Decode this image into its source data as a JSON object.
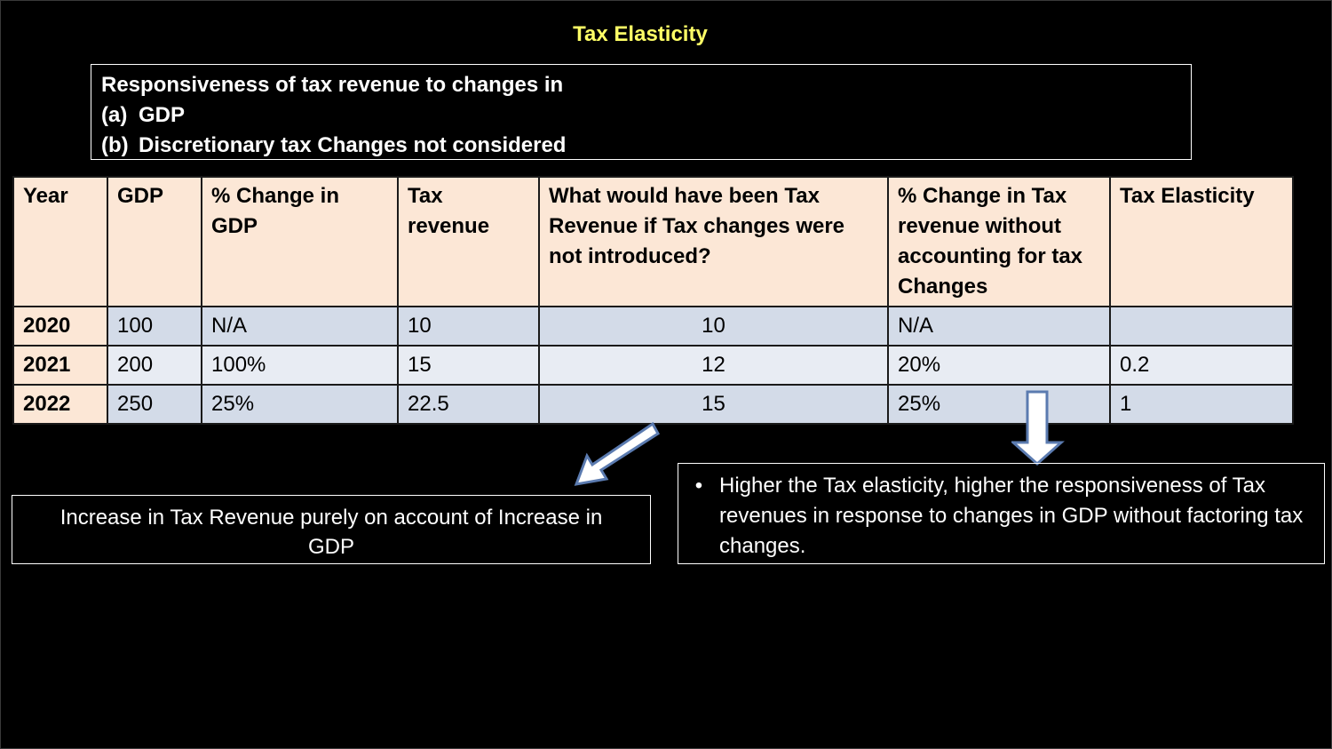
{
  "title": "Tax Elasticity",
  "intro": {
    "heading": "Responsiveness of tax revenue to changes in",
    "items": [
      {
        "marker": "(a)",
        "text": "GDP"
      },
      {
        "marker": "(b)",
        "text": "Discretionary tax Changes not considered"
      }
    ]
  },
  "table": {
    "headers": [
      "Year",
      "GDP",
      "% Change in GDP",
      "Tax revenue",
      "What would have been Tax Revenue if Tax changes were not introduced?",
      "% Change in Tax revenue without accounting for tax Changes",
      "Tax Elasticity"
    ],
    "rows": [
      [
        "2020",
        "100",
        "N/A",
        "10",
        "10",
        "N/A",
        ""
      ],
      [
        "2021",
        "200",
        "100%",
        "15",
        "12",
        "20%",
        "0.2"
      ],
      [
        "2022",
        "250",
        "25%",
        "22.5",
        "15",
        "25%",
        "1"
      ]
    ]
  },
  "notes": {
    "left": "Increase in Tax Revenue purely on account of Increase in GDP",
    "right_bullet": "•",
    "right": "Higher the Tax elasticity, higher the responsiveness of Tax revenues in response to changes in GDP without factoring tax changes."
  },
  "colors": {
    "title": "#ffff66",
    "header_bg": "#fce7d6",
    "row_band_dark": "#d3dbe8",
    "row_band_light": "#e8ecf3",
    "background": "#000000"
  },
  "icons": [
    "arrow-down-left-icon",
    "arrow-down-icon"
  ]
}
